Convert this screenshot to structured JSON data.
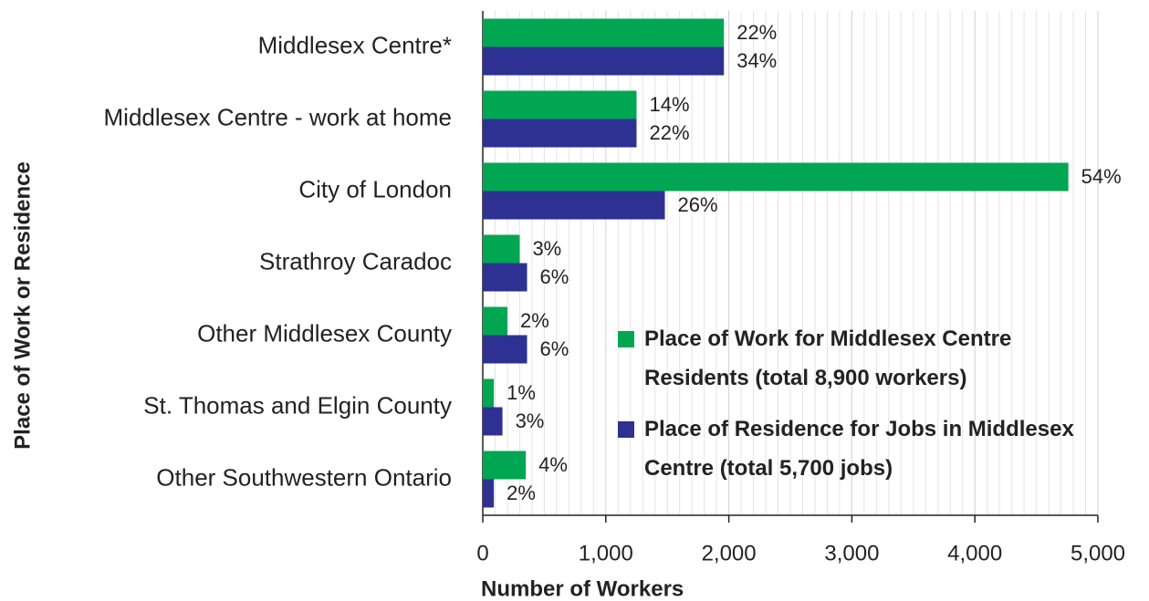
{
  "chart_data": {
    "type": "hbar",
    "xlabel": "Number of Workers",
    "ylabel": "Place of Work or Residence",
    "categories": [
      "Middlesex Centre*",
      "Middlesex Centre - work at home",
      "City of London",
      "Strathroy Caradoc",
      "Other Middlesex County",
      "St. Thomas and Elgin County",
      "Other Southwestern Ontario"
    ],
    "series": [
      {
        "name": "Place of Work for Middlesex Centre Residents (total 8,900 workers)",
        "color": "#00a651",
        "values": [
          1960,
          1250,
          4760,
          300,
          200,
          90,
          350
        ],
        "percent_labels": [
          "22%",
          "14%",
          "54%",
          "3%",
          "2%",
          "1%",
          "4%"
        ]
      },
      {
        "name": "Place of Residence for Jobs in Middlesex Centre (total 5,700 jobs)",
        "color": "#2e3192",
        "values": [
          1960,
          1250,
          1480,
          360,
          360,
          160,
          90
        ],
        "percent_labels": [
          "34%",
          "22%",
          "26%",
          "6%",
          "6%",
          "3%",
          "2%"
        ]
      }
    ],
    "xlim": [
      0,
      5000
    ],
    "xticks": [
      0,
      {
        "value": 1000,
        "label": "1,000"
      },
      {
        "value": 2000,
        "label": "2,000"
      },
      {
        "value": 3000,
        "label": "3,000"
      },
      {
        "value": 4000,
        "label": "4,000"
      },
      {
        "value": 5000,
        "label": "5,000"
      }
    ],
    "grid": true,
    "minor_grid_divisions": 10,
    "legend": "lower right"
  }
}
